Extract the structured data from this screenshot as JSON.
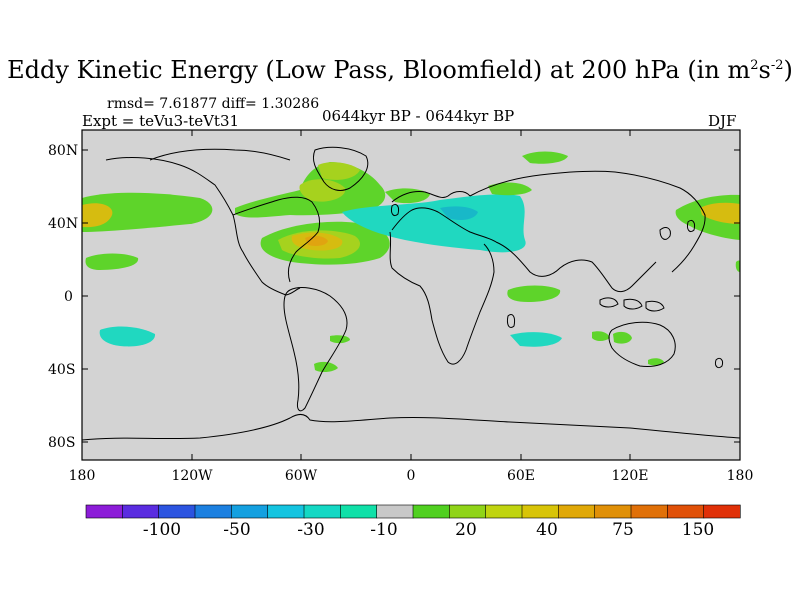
{
  "title": {
    "main": "Eddy Kinetic Energy (Low Pass, Bloomfield) at 200 hPa (in m",
    "sup1": "2",
    "s": "s",
    "sup2": "-2",
    "close": ")"
  },
  "stats": "rmsd= 7.61877 diff= 1.30286",
  "expt": "Expt = teVu3-teVt31",
  "period": "0644kyr BP - 0644kyr BP",
  "season": "DJF",
  "y_axis_labels": [
    "80N",
    "40N",
    "0",
    "40S",
    "80S"
  ],
  "x_axis_labels": [
    "180",
    "120W",
    "60W",
    "0",
    "60E",
    "120E",
    "180"
  ],
  "colorbar": {
    "colors": [
      "#8c1cd8",
      "#5a2ce0",
      "#2c54e0",
      "#1c80e0",
      "#14a0e0",
      "#14c4e0",
      "#14d8c4",
      "#10e0a8",
      "#c8c8c8",
      "#50d020",
      "#90d418",
      "#c0d410",
      "#d8c408",
      "#e0a808",
      "#e09008",
      "#e07008",
      "#e05008",
      "#e03008"
    ],
    "labels": [
      "-100",
      "-50",
      "-30",
      "-10",
      "20",
      "40",
      "75",
      "150"
    ]
  },
  "colors": {
    "land_bg": "#d3d3d3",
    "green": "#5ed42a",
    "yellowgreen": "#a6d21e",
    "gold": "#d6bc10",
    "orange": "#e0a410",
    "cyan": "#1cd8bc",
    "teal": "#20c8c8",
    "coast": "#000000"
  }
}
